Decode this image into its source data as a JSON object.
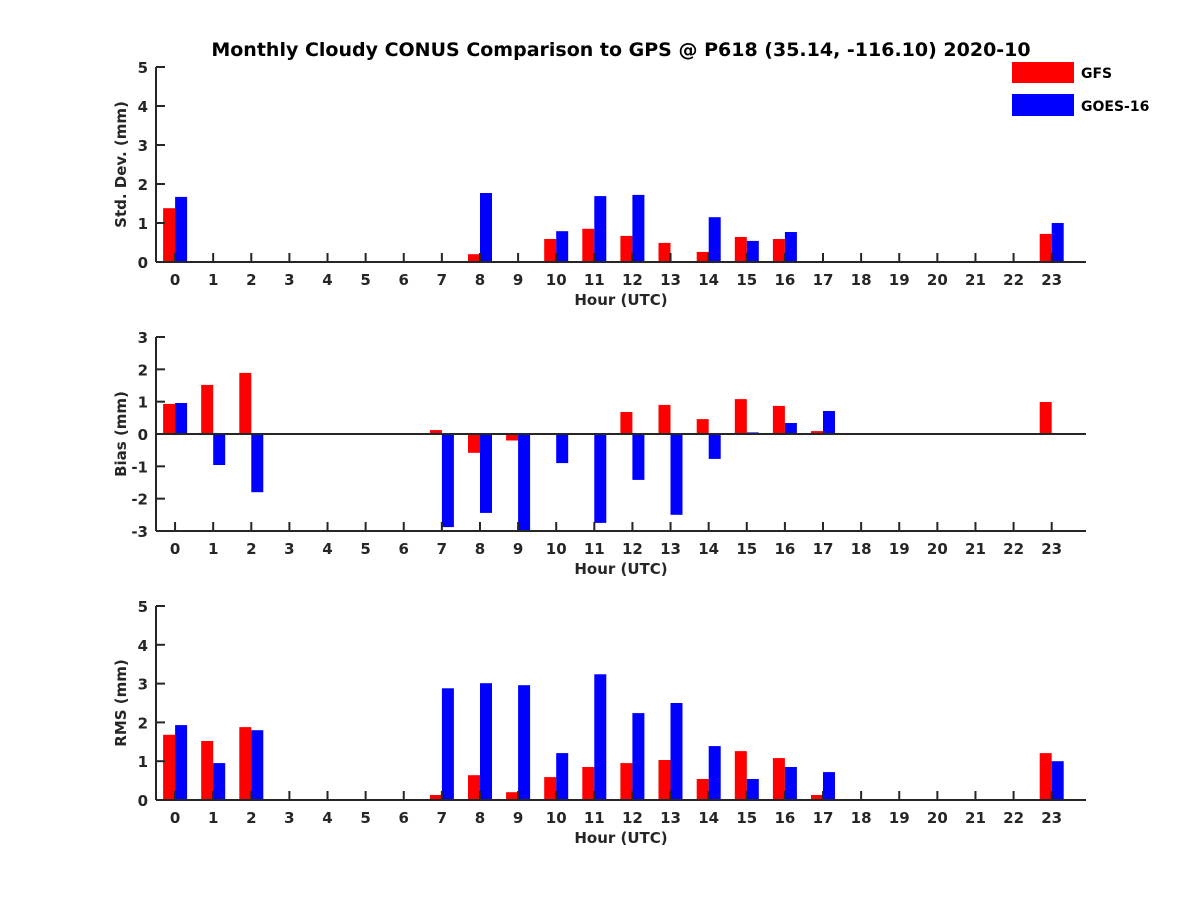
{
  "chart_data": {
    "type": "bar",
    "title": "Monthly Cloudy CONUS Comparison to GPS @ P618 (35.14, -116.10) 2020-10",
    "legend": {
      "placement": "top-right",
      "entries": [
        {
          "name": "GFS",
          "color": "#ff0000"
        },
        {
          "name": "GOES-16",
          "color": "#0000ff"
        }
      ]
    },
    "categories": [
      0,
      1,
      2,
      3,
      4,
      5,
      6,
      7,
      8,
      9,
      10,
      11,
      12,
      13,
      14,
      15,
      16,
      17,
      18,
      19,
      20,
      21,
      22,
      23
    ],
    "panels": [
      {
        "id": "std",
        "ylabel": "Std. Dev. (mm)",
        "xlabel": "Hour (UTC)",
        "ylim": [
          0,
          5
        ],
        "yticks": [
          0,
          1,
          2,
          3,
          4,
          5
        ],
        "xlim": [
          -0.5,
          23.9
        ],
        "series": [
          {
            "name": "GFS",
            "values": [
              1.38,
              0,
              0,
              0,
              0,
              0,
              0,
              0,
              0.2,
              0,
              0.59,
              0.85,
              0.67,
              0.49,
              0.26,
              0.64,
              0.59,
              0,
              0,
              0,
              0,
              0,
              0,
              0.72
            ]
          },
          {
            "name": "GOES-16",
            "values": [
              1.67,
              0,
              0,
              0,
              0,
              0,
              0,
              0,
              1.77,
              0,
              0.79,
              1.69,
              1.72,
              0,
              1.15,
              0.54,
              0.77,
              0,
              0,
              0,
              0,
              0,
              0,
              1.0
            ]
          }
        ]
      },
      {
        "id": "bias",
        "ylabel": "Bias (mm)",
        "xlabel": "Hour (UTC)",
        "ylim": [
          -3,
          3
        ],
        "yticks": [
          -3,
          -2,
          -1,
          0,
          1,
          2,
          3
        ],
        "xlim": [
          -0.5,
          23.9
        ],
        "zero_line": true,
        "series": [
          {
            "name": "GFS",
            "values": [
              0.93,
              1.52,
              1.89,
              0,
              0,
              0,
              0,
              0.12,
              -0.58,
              -0.2,
              0,
              0,
              0.68,
              0.9,
              0.46,
              1.08,
              0.87,
              0.09,
              0,
              0,
              0,
              0,
              0,
              0.99
            ]
          },
          {
            "name": "GOES-16",
            "values": [
              0.96,
              -0.96,
              -1.8,
              0,
              0,
              0,
              0,
              -2.88,
              -2.44,
              -2.97,
              -0.9,
              -2.75,
              -1.42,
              -2.5,
              -0.77,
              0.05,
              0.34,
              0.71,
              0,
              0,
              0,
              0,
              0,
              -0.03
            ]
          }
        ]
      },
      {
        "id": "rms",
        "ylabel": "RMS (mm)",
        "xlabel": "Hour (UTC)",
        "ylim": [
          0,
          5
        ],
        "yticks": [
          0,
          1,
          2,
          3,
          4,
          5
        ],
        "xlim": [
          -0.5,
          23.9
        ],
        "series": [
          {
            "name": "GFS",
            "values": [
              1.68,
              1.52,
              1.88,
              0,
              0,
              0,
              0,
              0.13,
              0.64,
              0.2,
              0.59,
              0.85,
              0.95,
              1.03,
              0.54,
              1.26,
              1.08,
              0.13,
              0,
              0,
              0,
              0,
              0,
              1.21
            ]
          },
          {
            "name": "GOES-16",
            "values": [
              1.93,
              0.95,
              1.8,
              0,
              0,
              0,
              0,
              2.88,
              3.01,
              2.96,
              1.21,
              3.24,
              2.24,
              2.5,
              1.39,
              0.54,
              0.85,
              0.72,
              0,
              0,
              0,
              0,
              0,
              1.0
            ]
          }
        ]
      }
    ]
  }
}
